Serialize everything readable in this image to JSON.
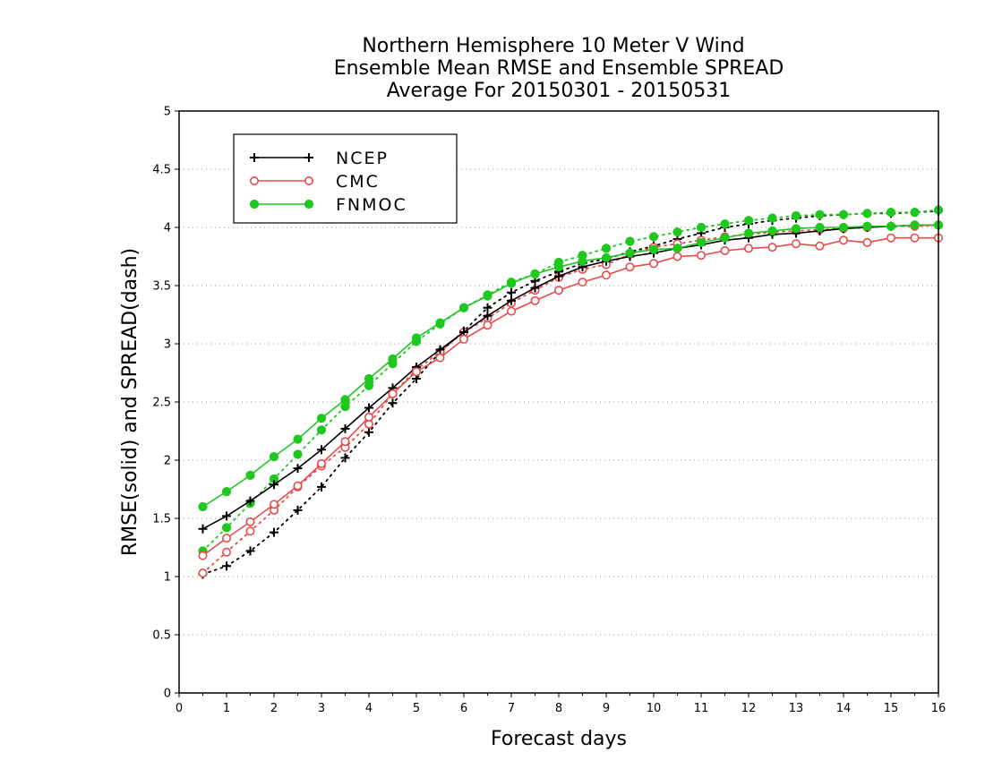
{
  "chart_data": {
    "type": "line",
    "title": [
      "Northern Hemisphere 10 Meter V Wind",
      "Ensemble Mean RMSE and Ensemble SPREAD",
      "Average For 20150301 - 20150531"
    ],
    "xlabel": "Forecast days",
    "ylabel": "RMSE(solid) and SPREAD(dash)",
    "xlim": [
      0,
      16
    ],
    "ylim": [
      0,
      5
    ],
    "xticks": [
      "0",
      "1",
      "2",
      "3",
      "4",
      "5",
      "6",
      "7",
      "8",
      "9",
      "10",
      "11",
      "12",
      "13",
      "14",
      "15",
      "16"
    ],
    "yticks": [
      "0",
      "0.5",
      "1",
      "1.5",
      "2",
      "2.5",
      "3",
      "3.5",
      "4",
      "4.5",
      "5"
    ],
    "grid": "horizontal dotted",
    "legend_position": "top-left",
    "x": [
      0.5,
      1,
      1.5,
      2,
      2.5,
      3,
      3.5,
      4,
      4.5,
      5,
      5.5,
      6,
      6.5,
      7,
      7.5,
      8,
      8.5,
      9,
      9.5,
      10,
      10.5,
      11,
      11.5,
      12,
      12.5,
      13,
      13.5,
      14,
      14.5,
      15,
      15.5,
      16
    ],
    "series": [
      {
        "name": "NCEP",
        "metric": "RMSE",
        "style": "solid",
        "marker": "plus",
        "color": "#000000",
        "values": [
          1.41,
          1.52,
          1.65,
          1.79,
          1.93,
          2.09,
          2.27,
          2.45,
          2.62,
          2.8,
          2.95,
          3.1,
          3.24,
          3.37,
          3.48,
          3.58,
          3.66,
          3.71,
          3.75,
          3.78,
          3.82,
          3.85,
          3.89,
          3.91,
          3.94,
          3.95,
          3.97,
          3.99,
          4.0,
          4.01,
          4.02,
          4.02
        ]
      },
      {
        "name": "NCEP",
        "metric": "SPREAD",
        "style": "dash",
        "marker": "plus",
        "color": "#000000",
        "values": [
          1.02,
          1.09,
          1.22,
          1.38,
          1.57,
          1.77,
          2.02,
          2.24,
          2.49,
          2.7,
          2.93,
          3.11,
          3.31,
          3.44,
          3.54,
          3.62,
          3.69,
          3.73,
          3.79,
          3.84,
          3.9,
          3.95,
          4.0,
          4.03,
          4.06,
          4.08,
          4.1,
          4.11,
          4.12,
          4.12,
          4.13,
          4.14
        ]
      },
      {
        "name": "CMC",
        "metric": "RMSE",
        "style": "solid",
        "marker": "circle",
        "color": "#e84a4a",
        "values": [
          1.18,
          1.33,
          1.47,
          1.62,
          1.78,
          1.97,
          2.16,
          2.37,
          2.57,
          2.76,
          2.88,
          3.04,
          3.16,
          3.28,
          3.37,
          3.46,
          3.53,
          3.59,
          3.66,
          3.69,
          3.75,
          3.76,
          3.8,
          3.82,
          3.83,
          3.86,
          3.84,
          3.89,
          3.87,
          3.91,
          3.91,
          3.91
        ]
      },
      {
        "name": "CMC",
        "metric": "SPREAD",
        "style": "dash",
        "marker": "circle",
        "color": "#e84a4a",
        "values": [
          1.03,
          1.21,
          1.39,
          1.57,
          1.77,
          1.95,
          2.11,
          2.31,
          2.57,
          2.78,
          2.93,
          3.1,
          3.22,
          3.35,
          3.46,
          3.57,
          3.64,
          3.68,
          3.77,
          3.83,
          3.86,
          3.89,
          3.92,
          3.94,
          3.96,
          3.97,
          3.98,
          3.99,
          4.0,
          4.01,
          4.01,
          4.02
        ]
      },
      {
        "name": "FNMOC",
        "metric": "RMSE",
        "style": "solid",
        "marker": "filled-circle",
        "color": "#1ec81e",
        "values": [
          1.6,
          1.73,
          1.87,
          2.03,
          2.18,
          2.36,
          2.52,
          2.7,
          2.87,
          3.05,
          3.18,
          3.31,
          3.41,
          3.52,
          3.6,
          3.66,
          3.71,
          3.74,
          3.78,
          3.81,
          3.82,
          3.87,
          3.91,
          3.95,
          3.97,
          3.99,
          4.0,
          4.0,
          4.01,
          4.01,
          4.02,
          4.02
        ]
      },
      {
        "name": "FNMOC",
        "metric": "SPREAD",
        "style": "dash",
        "marker": "filled-circle",
        "color": "#1ec81e",
        "values": [
          1.22,
          1.42,
          1.63,
          1.84,
          2.05,
          2.26,
          2.46,
          2.64,
          2.83,
          3.02,
          3.17,
          3.31,
          3.42,
          3.53,
          3.6,
          3.7,
          3.76,
          3.82,
          3.88,
          3.92,
          3.96,
          4.0,
          4.03,
          4.06,
          4.08,
          4.1,
          4.11,
          4.11,
          4.12,
          4.13,
          4.13,
          4.15
        ]
      }
    ],
    "legend": [
      {
        "label": "NCEP",
        "color": "#000000",
        "marker": "plus"
      },
      {
        "label": "CMC",
        "color": "#e84a4a",
        "marker": "circle"
      },
      {
        "label": "FNMOC",
        "color": "#1ec81e",
        "marker": "filled-circle"
      }
    ]
  }
}
